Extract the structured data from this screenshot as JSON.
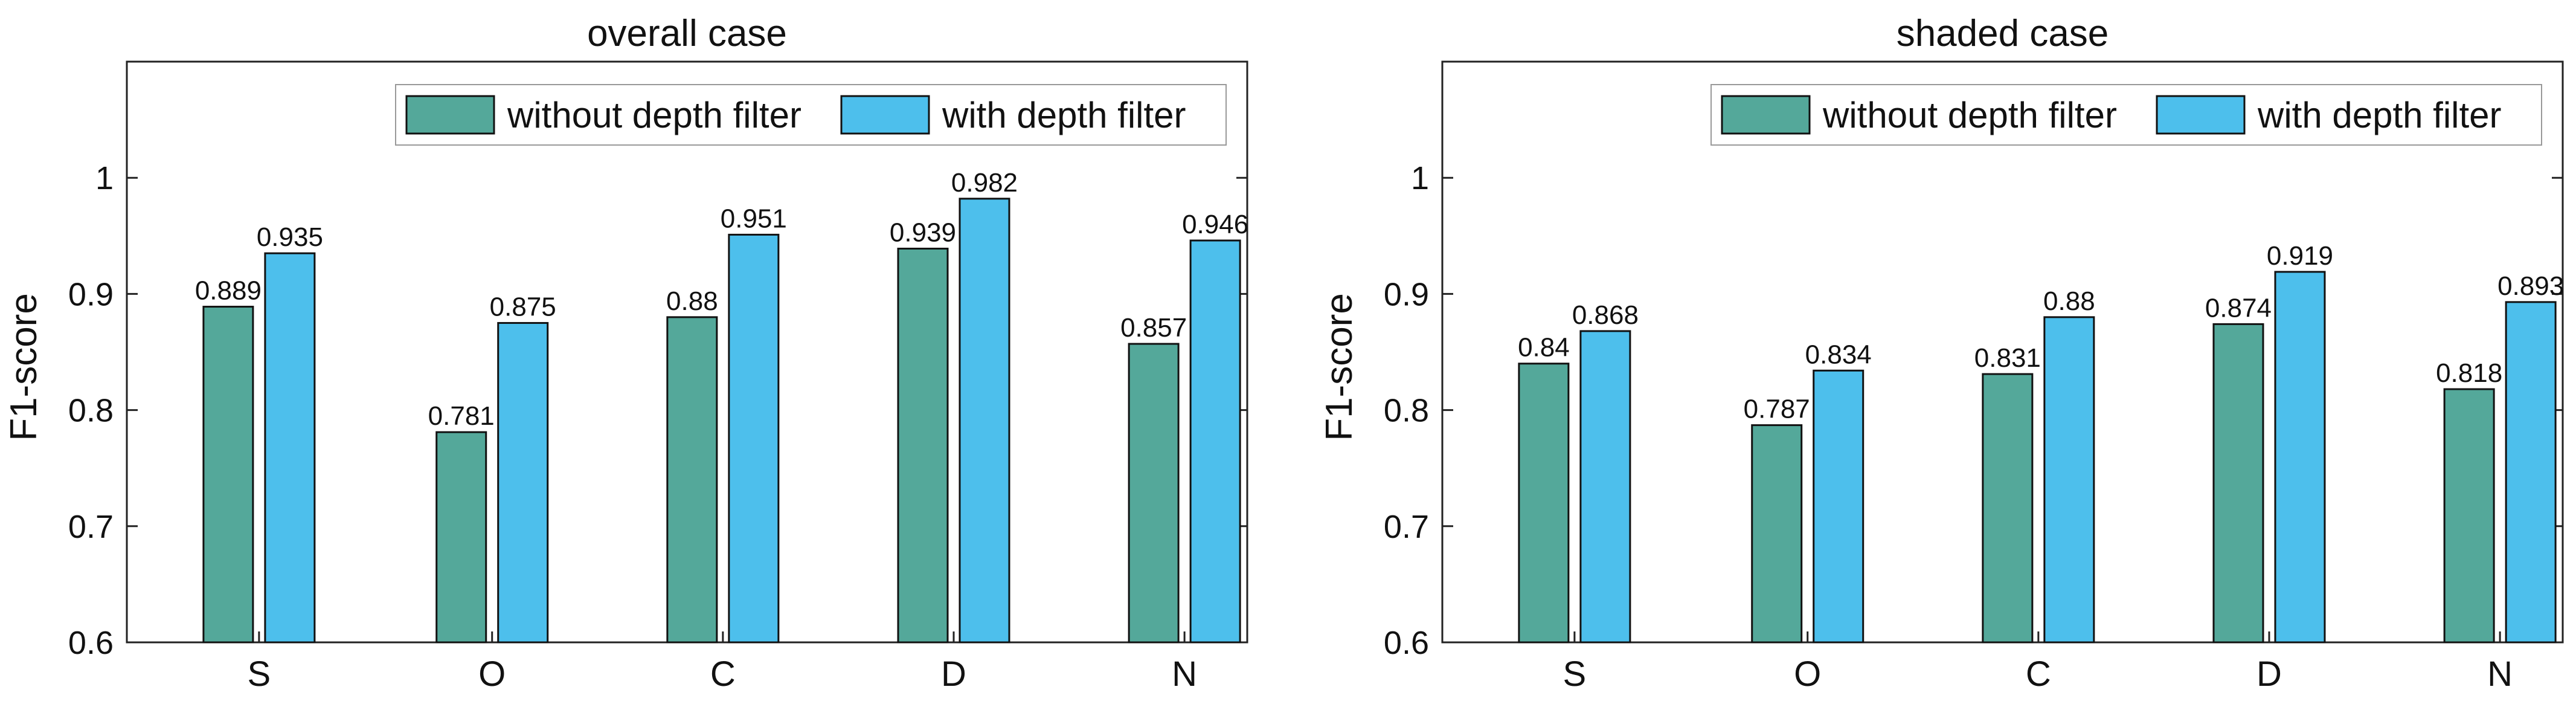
{
  "chart_data": [
    {
      "type": "bar",
      "title": "overall case",
      "xlabel": "",
      "ylabel": "F1-score",
      "ylim": [
        0.6,
        1.1
      ],
      "yticks": [
        "0.6",
        "0.7",
        "0.8",
        "0.9",
        "1"
      ],
      "categories": [
        "S",
        "O",
        "C",
        "D",
        "N"
      ],
      "legend_position": "top-right",
      "series": [
        {
          "name": "without depth filter",
          "color": "#54a89a",
          "values": [
            0.889,
            0.781,
            0.88,
            0.939,
            0.857
          ],
          "labels": [
            "0.889",
            "0.781",
            "0.88",
            "0.939",
            "0.857"
          ]
        },
        {
          "name": "with depth filter",
          "color": "#4dbfec",
          "values": [
            0.935,
            0.875,
            0.951,
            0.982,
            0.946
          ],
          "labels": [
            "0.935",
            "0.875",
            "0.951",
            "0.982",
            "0.946"
          ]
        }
      ]
    },
    {
      "type": "bar",
      "title": "shaded case",
      "xlabel": "",
      "ylabel": "F1-score",
      "ylim": [
        0.6,
        1.1
      ],
      "yticks": [
        "0.6",
        "0.7",
        "0.8",
        "0.9",
        "1"
      ],
      "categories": [
        "S",
        "O",
        "C",
        "D",
        "N"
      ],
      "legend_position": "top-right",
      "series": [
        {
          "name": "without depth filter",
          "color": "#54a89a",
          "values": [
            0.84,
            0.787,
            0.831,
            0.874,
            0.818
          ],
          "labels": [
            "0.84",
            "0.787",
            "0.831",
            "0.874",
            "0.818"
          ]
        },
        {
          "name": "with depth filter",
          "color": "#4dbfec",
          "values": [
            0.868,
            0.834,
            0.88,
            0.919,
            0.893
          ],
          "labels": [
            "0.868",
            "0.834",
            "0.88",
            "0.919",
            "0.893"
          ]
        }
      ]
    }
  ]
}
